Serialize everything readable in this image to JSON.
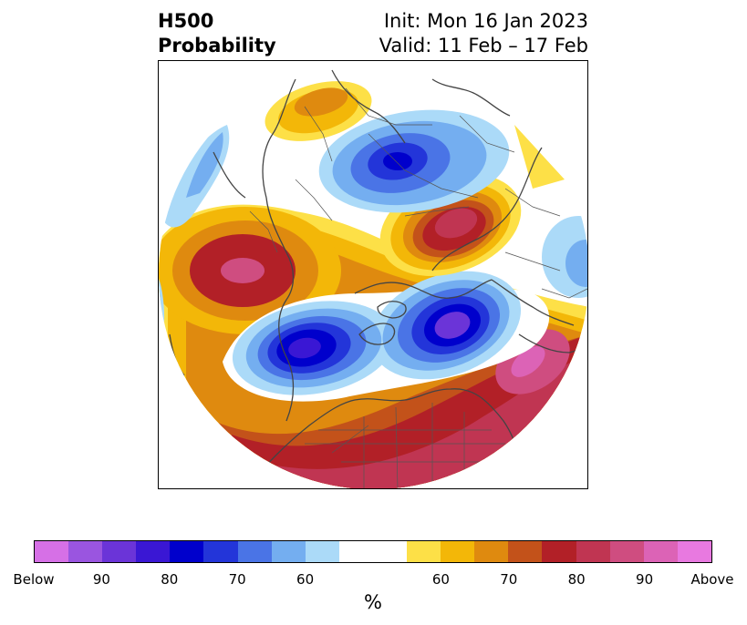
{
  "title": {
    "left_line1": "H500",
    "left_line2": "Probability",
    "right_line1": "Init: Mon 16 Jan 2023",
    "right_line2": "Valid: 11 Feb – 17 Feb"
  },
  "map": {
    "projection": "north-polar-stereographic",
    "coastline_color": "#444444",
    "border_color": "#555555"
  },
  "colorbar": {
    "unit": "%",
    "below_colors": [
      "#d670e6",
      "#9a55e0",
      "#6b34d8",
      "#3a17d4",
      "#0000cc",
      "#2335d9",
      "#4a74e6",
      "#74aef0",
      "#abdaf8"
    ],
    "neutral_color": "#ffffff",
    "above_colors": [
      "#fde047",
      "#f3b708",
      "#df8a0f",
      "#c3521a",
      "#b22027",
      "#c03552",
      "#cf4d80",
      "#dc63b6",
      "#e879e0"
    ],
    "tick_labels": [
      "Below",
      "90",
      "80",
      "70",
      "60",
      "60",
      "70",
      "80",
      "90",
      "Above"
    ]
  }
}
